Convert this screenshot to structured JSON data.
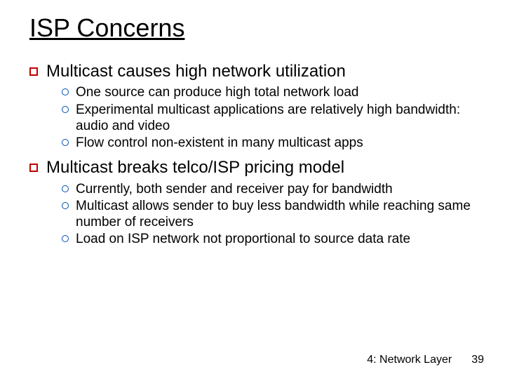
{
  "title": "ISP Concerns",
  "bullets": [
    {
      "text": "Multicast causes high network utilization",
      "sub": [
        "One source can produce high total network load",
        "Experimental multicast applications are relatively high bandwidth: audio and video",
        "Flow control non-existent in many multicast apps"
      ]
    },
    {
      "text": "Multicast breaks telco/ISP pricing model",
      "sub": [
        "Currently, both sender and receiver pay for bandwidth",
        "Multicast allows sender to buy less bandwidth while reaching same number of receivers",
        "Load on ISP network not proportional to source data rate"
      ]
    }
  ],
  "footer_label": "4: Network Layer",
  "page_number": "39",
  "colors": {
    "square_border": "#c00000",
    "circle_border": "#0050b0",
    "text": "#000000",
    "background": "#ffffff"
  }
}
